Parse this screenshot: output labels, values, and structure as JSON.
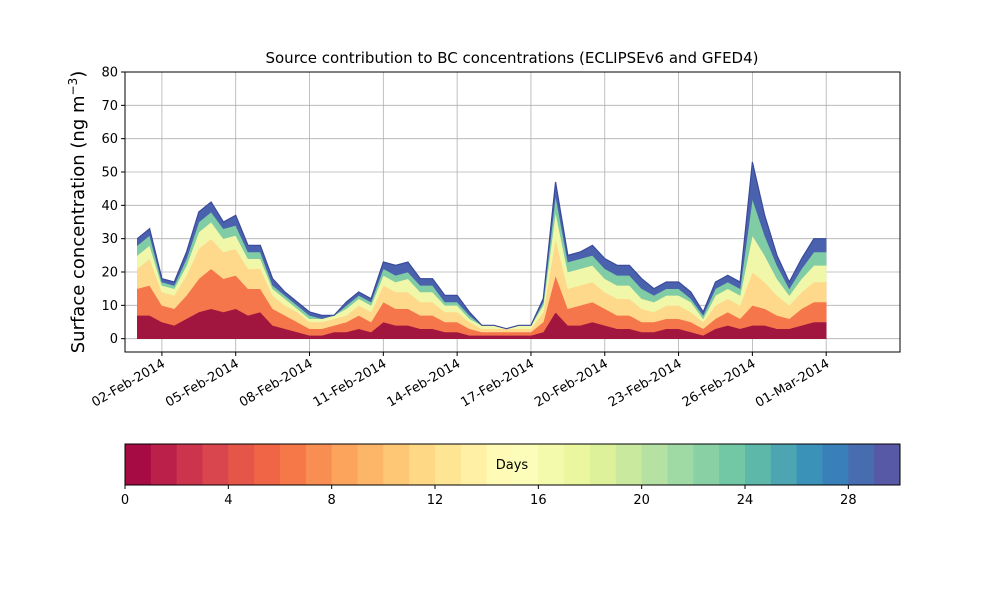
{
  "chart_data": {
    "type": "area",
    "stacked": true,
    "title": "Source contribution to BC concentrations (ECLIPSEv6 and GFED4)",
    "ylabel_prefix": "Surface concentration (ng m",
    "ylabel_sup": "−3",
    "ylabel_suffix": ")",
    "xlabel": "",
    "ylim": [
      -4,
      80
    ],
    "yticks": [
      0,
      10,
      20,
      30,
      40,
      50,
      60,
      70,
      80
    ],
    "xlim": [
      "2014-01-31T12:00",
      "2014-03-04"
    ],
    "xticks": [
      "2014-02-02",
      "2014-02-05",
      "2014-02-08",
      "2014-02-11",
      "2014-02-14",
      "2014-02-17",
      "2014-02-20",
      "2014-02-23",
      "2014-02-26",
      "2014-03-01"
    ],
    "xtick_labels": [
      "02-Feb-2014",
      "05-Feb-2014",
      "08-Feb-2014",
      "11-Feb-2014",
      "14-Feb-2014",
      "17-Feb-2014",
      "20-Feb-2014",
      "23-Feb-2014",
      "26-Feb-2014",
      "01-Mar-2014"
    ],
    "grid": true,
    "colormap": "Spectral",
    "layers": [
      {
        "days": "0-5",
        "color": "#a0163f"
      },
      {
        "days": "5-10",
        "color": "#f4764a"
      },
      {
        "days": "10-15",
        "color": "#fed98b"
      },
      {
        "days": "15-20",
        "color": "#f0f7a8"
      },
      {
        "days": "20-25",
        "color": "#80cca5"
      },
      {
        "days": "25-30",
        "color": "#4a62ad"
      }
    ],
    "series": {
      "x": [
        "2014-02-01T00:00",
        "2014-02-01T12:00",
        "2014-02-02T00:00",
        "2014-02-02T12:00",
        "2014-02-03T00:00",
        "2014-02-03T12:00",
        "2014-02-04T00:00",
        "2014-02-04T12:00",
        "2014-02-05T00:00",
        "2014-02-05T12:00",
        "2014-02-06T00:00",
        "2014-02-06T12:00",
        "2014-02-07T00:00",
        "2014-02-07T12:00",
        "2014-02-08T00:00",
        "2014-02-08T12:00",
        "2014-02-09T00:00",
        "2014-02-09T12:00",
        "2014-02-10T00:00",
        "2014-02-10T12:00",
        "2014-02-11T00:00",
        "2014-02-11T12:00",
        "2014-02-12T00:00",
        "2014-02-12T12:00",
        "2014-02-13T00:00",
        "2014-02-13T12:00",
        "2014-02-14T00:00",
        "2014-02-14T12:00",
        "2014-02-15T00:00",
        "2014-02-15T12:00",
        "2014-02-16T00:00",
        "2014-02-16T12:00",
        "2014-02-17T00:00",
        "2014-02-17T12:00",
        "2014-02-18T00:00",
        "2014-02-18T12:00",
        "2014-02-19T00:00",
        "2014-02-19T12:00",
        "2014-02-20T00:00",
        "2014-02-20T12:00",
        "2014-02-21T00:00",
        "2014-02-21T12:00",
        "2014-02-22T00:00",
        "2014-02-22T12:00",
        "2014-02-23T00:00",
        "2014-02-23T12:00",
        "2014-02-24T00:00",
        "2014-02-24T12:00",
        "2014-02-25T00:00",
        "2014-02-25T12:00",
        "2014-02-26T00:00",
        "2014-02-26T12:00",
        "2014-02-27T00:00",
        "2014-02-27T12:00",
        "2014-02-28T00:00",
        "2014-02-28T12:00",
        "2014-03-01T00:00"
      ],
      "values_by_layer": [
        [
          7,
          7,
          5,
          4,
          6,
          8,
          9,
          8,
          9,
          7,
          8,
          4,
          3,
          2,
          1,
          1,
          2,
          2,
          3,
          2,
          5,
          4,
          4,
          3,
          3,
          2,
          2,
          1,
          1,
          1,
          1,
          1,
          1,
          2,
          8,
          4,
          4,
          5,
          4,
          3,
          3,
          2,
          2,
          3,
          3,
          2,
          1,
          3,
          4,
          3,
          4,
          4,
          3,
          3,
          4,
          5,
          5
        ],
        [
          8,
          9,
          5,
          5,
          7,
          10,
          12,
          10,
          10,
          8,
          7,
          5,
          4,
          3,
          2,
          2,
          2,
          3,
          4,
          3,
          6,
          5,
          5,
          4,
          4,
          3,
          3,
          2,
          1,
          1,
          1,
          1,
          1,
          3,
          11,
          5,
          6,
          6,
          5,
          4,
          4,
          3,
          3,
          3,
          3,
          3,
          2,
          3,
          4,
          3,
          6,
          5,
          4,
          3,
          5,
          6,
          6
        ],
        [
          6,
          8,
          4,
          4,
          6,
          9,
          9,
          8,
          8,
          6,
          6,
          4,
          3,
          3,
          2,
          2,
          2,
          2,
          3,
          3,
          5,
          5,
          5,
          4,
          4,
          3,
          3,
          2,
          1,
          1,
          1,
          1,
          1,
          3,
          11,
          6,
          6,
          6,
          5,
          5,
          5,
          4,
          3,
          4,
          4,
          3,
          2,
          4,
          4,
          4,
          10,
          8,
          6,
          4,
          5,
          6,
          6
        ],
        [
          4,
          4,
          2,
          2,
          3,
          5,
          5,
          4,
          4,
          3,
          3,
          2,
          2,
          1,
          1,
          1,
          1,
          2,
          2,
          2,
          3,
          3,
          4,
          3,
          3,
          2,
          2,
          1,
          1,
          1,
          0,
          1,
          1,
          2,
          8,
          5,
          5,
          5,
          4,
          4,
          4,
          3,
          3,
          3,
          3,
          3,
          1,
          3,
          3,
          3,
          11,
          8,
          5,
          3,
          4,
          5,
          5
        ],
        [
          3,
          3,
          1,
          1,
          2,
          3,
          3,
          3,
          3,
          2,
          2,
          1,
          1,
          1,
          1,
          0,
          0,
          1,
          1,
          1,
          2,
          2,
          2,
          2,
          2,
          1,
          1,
          1,
          0,
          0,
          0,
          0,
          0,
          1,
          5,
          3,
          3,
          3,
          3,
          3,
          3,
          3,
          2,
          2,
          2,
          1,
          1,
          2,
          2,
          2,
          11,
          6,
          4,
          2,
          3,
          4,
          4
        ],
        [
          2,
          2,
          1,
          1,
          2,
          3,
          3,
          2,
          3,
          2,
          2,
          2,
          1,
          1,
          1,
          1,
          0,
          1,
          1,
          1,
          2,
          3,
          3,
          2,
          2,
          2,
          2,
          1,
          0,
          0,
          0,
          0,
          0,
          1,
          4,
          2,
          2,
          3,
          3,
          3,
          3,
          3,
          2,
          2,
          2,
          2,
          1,
          2,
          2,
          2,
          11,
          6,
          3,
          2,
          3,
          4,
          4
        ]
      ]
    },
    "colorbar": {
      "label": "Days",
      "ticks": [
        0,
        4,
        8,
        12,
        16,
        20,
        24,
        28
      ],
      "range": [
        0,
        30
      ],
      "n_levels": 30
    }
  }
}
